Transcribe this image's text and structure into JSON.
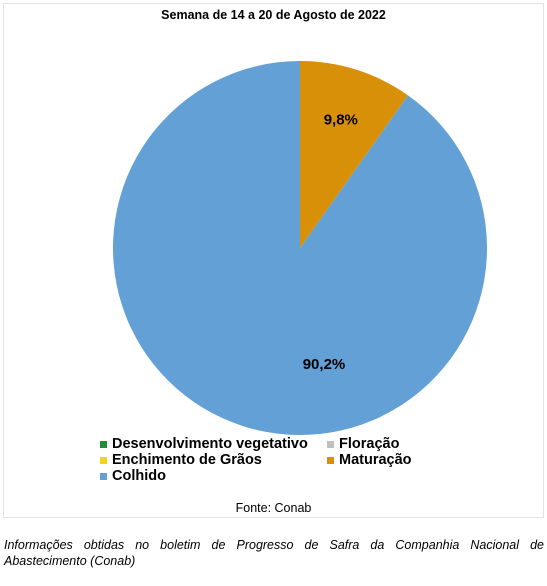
{
  "chart_data": {
    "type": "pie",
    "title": "Semana de 14 a 20 de Agosto de 2022",
    "slices": [
      {
        "name": "Desenvolvimento vegetativo",
        "value": 0,
        "label": "",
        "color": "#1f8f3a"
      },
      {
        "name": "Floração",
        "value": 0,
        "label": "",
        "color": "#c0c0c0"
      },
      {
        "name": "Enchimento de Grãos",
        "value": 0,
        "label": "",
        "color": "#f2d21b"
      },
      {
        "name": "Maturação",
        "value": 9.8,
        "label": "9,8%",
        "color": "#d89008"
      },
      {
        "name": "Colhido",
        "value": 90.2,
        "label": "90,2%",
        "color": "#62a0d6"
      }
    ],
    "legend_position": "bottom-left"
  },
  "source": "Fonte: Conab",
  "caption": "Informações obtidas no boletim de Progresso de Safra da Companhia Nacional de Abastecimento (Conab)"
}
